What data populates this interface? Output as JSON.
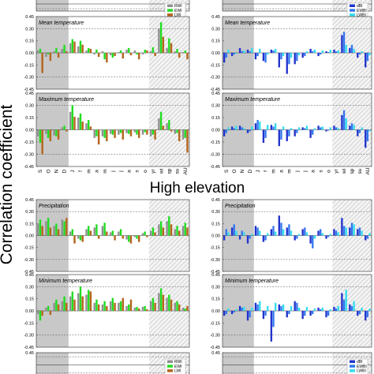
{
  "figure": {
    "y_axis_label": "Correlation coefficient",
    "section_label": "High elevation",
    "colors": {
      "rwi": "#909090",
      "ewi": "#22dd22",
      "lwi": "#b5651d",
      "dbi": "#2233cc",
      "ewbi": "#3377ee",
      "lwbi": "#33ddee",
      "shade": "#c8c8c8",
      "hatch": "#bbbbbb"
    },
    "months": [
      "S",
      "O",
      "N",
      "D",
      "J",
      "f",
      "m",
      "a",
      "m",
      "j",
      "j",
      "a",
      "s",
      "o"
    ],
    "seasons": [
      "yr",
      "wi",
      "sp",
      "su",
      "AU"
    ]
  },
  "chart_data": [
    {
      "type": "bar",
      "title": "",
      "legend": [
        "RWI",
        "EWI",
        "LWI"
      ],
      "legend_position": "top-right",
      "ylim": [
        -0.45,
        0.45
      ],
      "yticks": [],
      "series_group": "width",
      "series": [],
      "show_xticks": false,
      "clipped_top": true
    },
    {
      "type": "bar",
      "title": "Mean temperature",
      "legend": [],
      "ylim": [
        -0.45,
        0.45
      ],
      "yticks": [
        "0.45",
        "0.30",
        "0.15",
        "0.00",
        "-0.15",
        "-0.30",
        "-0.45"
      ],
      "series_group": "width",
      "series": [
        {
          "name": "RWI",
          "values": [
            0.03,
            -0.05,
            0.02,
            0.05,
            0.12,
            0.08,
            0.03,
            -0.02,
            0.02,
            -0.03,
            0.01,
            0.04,
            0.03,
            -0.02,
            0.02,
            0.3,
            0.06,
            0.02,
            0.01
          ]
        },
        {
          "name": "EWI",
          "values": [
            0.05,
            -0.02,
            0.06,
            0.1,
            0.17,
            0.15,
            0.06,
            0.04,
            -0.08,
            -0.06,
            0.03,
            0.06,
            -0.02,
            0.04,
            0.07,
            0.38,
            0.18,
            0.05,
            0.03
          ]
        },
        {
          "name": "LWI",
          "values": [
            -0.25,
            -0.1,
            -0.06,
            0.02,
            0.14,
            0.1,
            0.05,
            -0.05,
            -0.12,
            -0.04,
            -0.07,
            -0.03,
            -0.08,
            0.03,
            -0.04,
            0.2,
            0.12,
            -0.06,
            -0.08
          ]
        }
      ]
    },
    {
      "type": "bar",
      "title": "Maximum temperature",
      "legend": [],
      "ylim": [
        -0.45,
        0.45
      ],
      "yticks": [
        "0.45",
        "0.30",
        "0.15",
        "0.00",
        "-0.15",
        "-0.30",
        "-0.45"
      ],
      "series_group": "width",
      "series": [
        {
          "name": "RWI",
          "values": [
            -0.08,
            -0.05,
            -0.07,
            0.03,
            0.22,
            0.15,
            0.08,
            -0.1,
            -0.08,
            -0.05,
            -0.06,
            -0.04,
            -0.03,
            -0.06,
            -0.08,
            0.14,
            0.08,
            -0.05,
            -0.12
          ]
        },
        {
          "name": "EWI",
          "values": [
            -0.16,
            -0.1,
            -0.08,
            0.05,
            0.3,
            0.2,
            0.12,
            -0.08,
            -0.1,
            -0.06,
            -0.04,
            -0.05,
            -0.06,
            -0.03,
            -0.06,
            0.22,
            0.12,
            -0.04,
            -0.1
          ]
        },
        {
          "name": "LWI",
          "values": [
            -0.3,
            -0.14,
            -0.12,
            -0.02,
            0.16,
            0.1,
            0.04,
            -0.18,
            -0.14,
            -0.1,
            -0.12,
            -0.08,
            -0.1,
            -0.06,
            -0.12,
            0.05,
            -0.02,
            -0.14,
            -0.28
          ]
        }
      ],
      "show_xticks": true
    },
    {
      "type": "bar",
      "title": "",
      "legend": [
        "dBI",
        "EWBI",
        "LWBI"
      ],
      "legend_position": "top-right",
      "ylim": [
        -0.45,
        0.45
      ],
      "yticks": [],
      "series_group": "density",
      "series": [],
      "show_xticks": false,
      "clipped_top": true
    },
    {
      "type": "bar",
      "title": "Mean temperature",
      "legend": [],
      "ylim": [
        -0.45,
        0.45
      ],
      "yticks": [
        "0.45",
        "0.30",
        "0.15",
        "0.00",
        "-0.15",
        "-0.30",
        "-0.45"
      ],
      "series_group": "density",
      "series": [
        {
          "name": "dBI",
          "values": [
            -0.12,
            -0.04,
            0.06,
            0.04,
            -0.08,
            -0.1,
            0.04,
            -0.18,
            -0.26,
            -0.14,
            -0.06,
            0.05,
            -0.04,
            0.02,
            0.04,
            0.22,
            0.06,
            -0.06,
            -0.18
          ]
        },
        {
          "name": "EWBI",
          "values": [
            -0.06,
            -0.02,
            0.02,
            0.02,
            -0.04,
            -0.12,
            0.03,
            -0.08,
            -0.14,
            -0.1,
            -0.04,
            0.02,
            -0.02,
            0.01,
            0.02,
            0.26,
            0.1,
            -0.02,
            -0.1
          ]
        },
        {
          "name": "LWBI",
          "values": [
            0.04,
            -0.01,
            0.03,
            0.06,
            0.05,
            -0.02,
            0.05,
            -0.04,
            -0.06,
            -0.03,
            0.02,
            0.04,
            0.03,
            0.04,
            0.03,
            0.1,
            0.05,
            0.02,
            -0.03
          ]
        }
      ]
    },
    {
      "type": "bar",
      "title": "Maximum temperature",
      "legend": [],
      "ylim": [
        -0.45,
        0.45
      ],
      "yticks": [
        "0.45",
        "0.30",
        "0.15",
        "0.00",
        "-0.15",
        "-0.30",
        "-0.45"
      ],
      "series_group": "density",
      "series": [
        {
          "name": "dBI",
          "values": [
            -0.08,
            0.04,
            0.05,
            -0.04,
            0.08,
            -0.16,
            0.06,
            -0.2,
            -0.14,
            -0.08,
            0.03,
            -0.1,
            0.05,
            -0.02,
            0.05,
            0.18,
            0.05,
            -0.08,
            -0.22
          ]
        },
        {
          "name": "EWBI",
          "values": [
            -0.04,
            0.02,
            0.03,
            -0.02,
            0.12,
            -0.1,
            0.04,
            -0.12,
            -0.08,
            -0.04,
            0.02,
            -0.06,
            0.03,
            -0.01,
            0.03,
            0.24,
            0.08,
            -0.04,
            -0.14
          ]
        },
        {
          "name": "LWBI",
          "values": [
            0.03,
            0.05,
            0.02,
            0.04,
            0.1,
            0.06,
            0.08,
            0.04,
            0.02,
            0.03,
            0.05,
            0.02,
            0.04,
            0.03,
            0.02,
            0.14,
            0.06,
            0.03,
            -0.02
          ]
        }
      ],
      "show_xticks": true
    },
    {
      "type": "bar",
      "title": "Precipitation",
      "legend": [],
      "ylim": [
        -0.45,
        0.45
      ],
      "yticks": [
        "0.45",
        "0.30",
        "0.15",
        "0.00",
        "-0.15",
        "-0.30",
        "-0.45"
      ],
      "series_group": "width",
      "series": [
        {
          "name": "RWI",
          "values": [
            0.15,
            0.18,
            0.12,
            0.2,
            0.05,
            -0.04,
            0.08,
            0.1,
            0.12,
            0.04,
            0.05,
            -0.05,
            -0.02,
            0.03,
            0.06,
            0.14,
            0.18,
            0.08,
            0.12
          ]
        },
        {
          "name": "EWI",
          "values": [
            0.2,
            0.22,
            0.15,
            0.18,
            0.08,
            -0.06,
            0.12,
            0.14,
            0.16,
            0.06,
            0.08,
            -0.08,
            -0.04,
            0.05,
            0.1,
            0.18,
            0.24,
            0.12,
            0.16
          ]
        },
        {
          "name": "LWI",
          "values": [
            0.12,
            0.1,
            0.08,
            0.22,
            -0.1,
            -0.08,
            0.06,
            -0.04,
            0.05,
            -0.06,
            -0.04,
            -0.1,
            -0.08,
            -0.02,
            0.04,
            0.1,
            0.14,
            0.06,
            0.1
          ]
        }
      ]
    },
    {
      "type": "bar",
      "title": "Minimum temperature",
      "legend": [],
      "ylim": [
        -0.45,
        0.45
      ],
      "yticks": [
        "0.45",
        "0.30",
        "0.15",
        "0.00",
        "-0.15",
        "-0.30",
        "-0.45"
      ],
      "series_group": "width",
      "series": [
        {
          "name": "RWI",
          "values": [
            -0.04,
            0.04,
            0.1,
            0.12,
            0.18,
            0.22,
            0.2,
            0.1,
            0.08,
            0.12,
            0.1,
            0.06,
            0.04,
            0.05,
            0.12,
            0.22,
            0.16,
            0.1,
            0.04
          ]
        },
        {
          "name": "EWI",
          "values": [
            -0.12,
            0.06,
            0.14,
            0.18,
            0.24,
            0.3,
            0.26,
            0.14,
            0.12,
            0.16,
            0.12,
            0.08,
            0.05,
            0.06,
            0.16,
            0.28,
            0.2,
            0.12,
            0.03
          ]
        },
        {
          "name": "LWI",
          "values": [
            -0.06,
            -0.05,
            0.08,
            0.1,
            0.14,
            0.18,
            0.24,
            0.08,
            0.06,
            0.1,
            0.16,
            0.14,
            0.03,
            0.02,
            0.1,
            0.2,
            0.14,
            0.08,
            0.06
          ]
        }
      ],
      "show_xticks": false
    },
    {
      "type": "bar",
      "title": "",
      "legend": [
        "RWI",
        "EWI",
        "LWI"
      ],
      "legend_position": "top-right",
      "ylim": [
        -0.45,
        0.45
      ],
      "yticks": [
        "0.45"
      ],
      "series_group": "width",
      "series": [],
      "show_xticks": false,
      "clipped_bottom": true
    },
    {
      "type": "bar",
      "title": "Precipitation",
      "legend": [],
      "ylim": [
        -0.45,
        0.45
      ],
      "yticks": [
        "0.45",
        "0.30",
        "0.15",
        "0.00",
        "-0.15",
        "-0.30",
        "-0.45"
      ],
      "series_group": "density",
      "series": [
        {
          "name": "dBI",
          "values": [
            -0.06,
            0.1,
            -0.05,
            -0.1,
            0.12,
            -0.08,
            0.08,
            0.25,
            0.1,
            -0.06,
            0.08,
            -0.1,
            0.06,
            -0.04,
            0.08,
            0.22,
            0.1,
            0.08,
            -0.06
          ]
        },
        {
          "name": "EWBI",
          "values": [
            0.08,
            0.14,
            0.06,
            -0.04,
            0.1,
            -0.06,
            0.12,
            0.16,
            0.14,
            -0.04,
            0.1,
            -0.16,
            0.08,
            -0.02,
            0.06,
            0.12,
            0.16,
            0.1,
            -0.04
          ]
        },
        {
          "name": "LWBI",
          "values": [
            0.04,
            0.06,
            0.04,
            0.02,
            0.06,
            0.03,
            0.05,
            0.08,
            0.06,
            0.02,
            0.04,
            -0.04,
            0.03,
            0.02,
            0.04,
            0.1,
            0.14,
            0.06,
            0.03
          ]
        }
      ]
    },
    {
      "type": "bar",
      "title": "Minimum temperature",
      "legend": [],
      "ylim": [
        -0.45,
        0.45
      ],
      "yticks": [
        "0.45",
        "0.30",
        "0.15",
        "0.00",
        "-0.15",
        "-0.30",
        "-0.45"
      ],
      "series_group": "density",
      "series": [
        {
          "name": "dBI",
          "values": [
            -0.06,
            -0.04,
            0.06,
            -0.12,
            0.1,
            -0.1,
            -0.38,
            0.08,
            -0.08,
            0.12,
            -0.1,
            -0.06,
            0.04,
            -0.08,
            0.05,
            0.22,
            0.08,
            -0.06,
            -0.12
          ]
        },
        {
          "name": "EWBI",
          "values": [
            -0.04,
            -0.02,
            0.04,
            -0.08,
            0.08,
            -0.06,
            -0.2,
            0.06,
            -0.04,
            0.1,
            -0.06,
            -0.04,
            0.02,
            -0.06,
            0.03,
            0.14,
            0.06,
            -0.04,
            -0.08
          ]
        },
        {
          "name": "LWBI",
          "values": [
            0.03,
            0.02,
            0.05,
            0.04,
            0.12,
            0.06,
            0.1,
            0.08,
            0.06,
            0.04,
            0.05,
            0.03,
            0.04,
            0.02,
            0.06,
            0.26,
            0.12,
            0.04,
            0.03
          ]
        }
      ],
      "show_xticks": false
    },
    {
      "type": "bar",
      "title": "",
      "legend": [
        "dBI",
        "EWBI",
        "LWBI"
      ],
      "legend_position": "top-right",
      "ylim": [
        -0.45,
        0.45
      ],
      "yticks": [
        "0.45"
      ],
      "series_group": "density",
      "series": [],
      "show_xticks": false,
      "clipped_bottom": true
    }
  ]
}
